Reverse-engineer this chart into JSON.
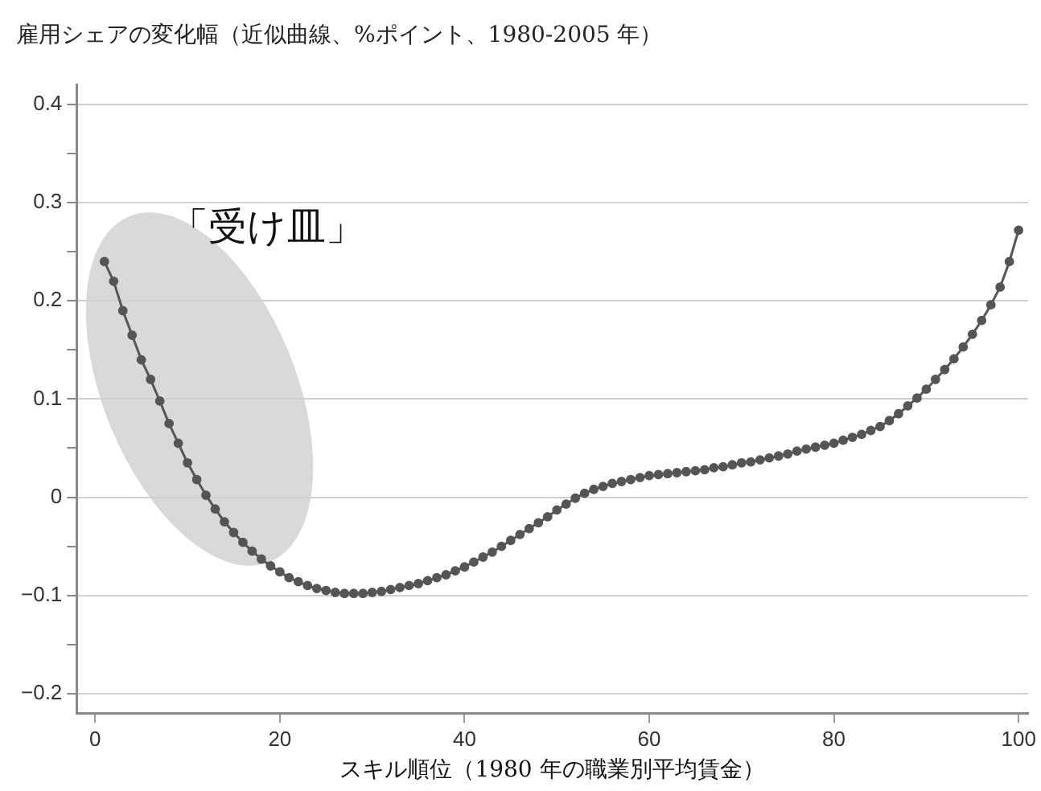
{
  "chart_data": {
    "type": "line",
    "title": "雇用シェアの変化幅（近似曲線、%ポイント、1980-2005 年）",
    "xlabel": "スキル順位（1980 年の職業別平均賃金）",
    "annotations": [
      "「受け皿」"
    ],
    "x": [
      1,
      2,
      3,
      4,
      5,
      6,
      7,
      8,
      9,
      10,
      11,
      12,
      13,
      14,
      15,
      16,
      17,
      18,
      19,
      20,
      21,
      22,
      23,
      24,
      25,
      26,
      27,
      28,
      29,
      30,
      31,
      32,
      33,
      34,
      35,
      36,
      37,
      38,
      39,
      40,
      41,
      42,
      43,
      44,
      45,
      46,
      47,
      48,
      49,
      50,
      51,
      52,
      53,
      54,
      55,
      56,
      57,
      58,
      59,
      60,
      61,
      62,
      63,
      64,
      65,
      66,
      67,
      68,
      69,
      70,
      71,
      72,
      73,
      74,
      75,
      76,
      77,
      78,
      79,
      80,
      81,
      82,
      83,
      84,
      85,
      86,
      87,
      88,
      89,
      90,
      91,
      92,
      93,
      94,
      95,
      96,
      97,
      98,
      99,
      100
    ],
    "series": [
      {
        "color": "#555555",
        "values": [
          0.24,
          0.22,
          0.19,
          0.165,
          0.14,
          0.12,
          0.098,
          0.075,
          0.055,
          0.035,
          0.018,
          0.002,
          -0.012,
          -0.025,
          -0.036,
          -0.046,
          -0.055,
          -0.063,
          -0.07,
          -0.076,
          -0.082,
          -0.086,
          -0.09,
          -0.093,
          -0.095,
          -0.097,
          -0.098,
          -0.098,
          -0.098,
          -0.097,
          -0.096,
          -0.094,
          -0.092,
          -0.09,
          -0.088,
          -0.085,
          -0.082,
          -0.079,
          -0.075,
          -0.071,
          -0.066,
          -0.061,
          -0.056,
          -0.05,
          -0.044,
          -0.038,
          -0.032,
          -0.026,
          -0.02,
          -0.013,
          -0.007,
          -0.001,
          0.004,
          0.008,
          0.011,
          0.014,
          0.016,
          0.018,
          0.02,
          0.022,
          0.023,
          0.024,
          0.025,
          0.026,
          0.027,
          0.028,
          0.03,
          0.031,
          0.033,
          0.035,
          0.036,
          0.038,
          0.04,
          0.042,
          0.044,
          0.047,
          0.049,
          0.051,
          0.053,
          0.055,
          0.058,
          0.061,
          0.064,
          0.068,
          0.072,
          0.078,
          0.085,
          0.093,
          0.101,
          0.11,
          0.12,
          0.13,
          0.141,
          0.153,
          0.166,
          0.18,
          0.196,
          0.214,
          0.24,
          0.272
        ]
      }
    ],
    "xlim": [
      -2,
      101
    ],
    "xticks": [
      0,
      20,
      40,
      60,
      80,
      100
    ],
    "ylim": [
      -0.22,
      0.42
    ],
    "yticks": [
      -0.2,
      {
        "value": -0.15,
        "label": null
      },
      -0.1,
      {
        "value": -0.05,
        "label": null
      },
      0,
      {
        "value": 0.05,
        "label": null
      },
      0.1,
      {
        "value": 0.15,
        "label": null
      },
      0.2,
      {
        "value": 0.25,
        "label": null
      },
      0.3,
      {
        "value": 0.35,
        "label": null
      },
      0.4
    ],
    "grid": "y",
    "legend": false,
    "marker": "circle",
    "line_style": "solid"
  }
}
